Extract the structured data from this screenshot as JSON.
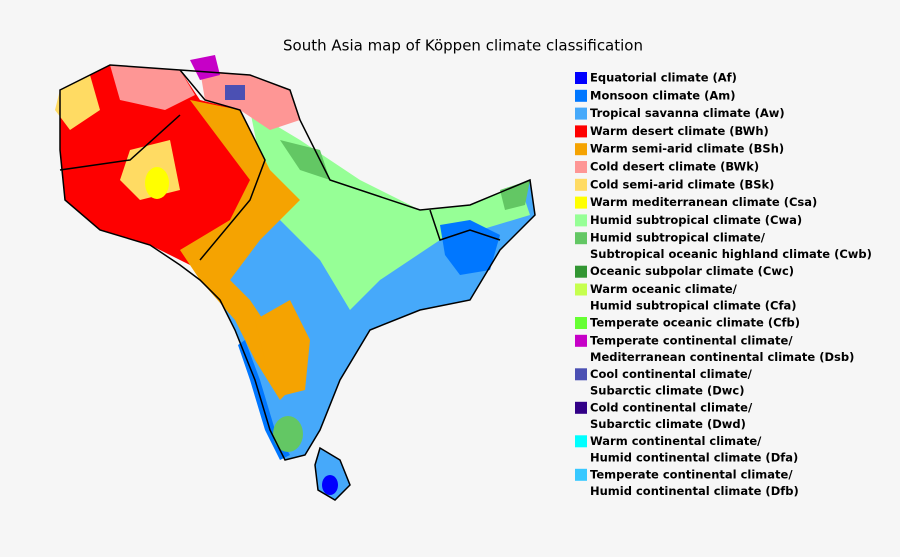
{
  "title": "South Asia map of Köppen climate classification",
  "legend": [
    {
      "lines": [
        "Equatorial climate (Af)"
      ],
      "color": "#0000fe"
    },
    {
      "lines": [
        "Monsoon climate (Am)"
      ],
      "color": "#0077ff"
    },
    {
      "lines": [
        "Tropical savanna climate (Aw)"
      ],
      "color": "#46a9fa"
    },
    {
      "lines": [
        "Warm desert climate (BWh)"
      ],
      "color": "#fe0000"
    },
    {
      "lines": [
        "Warm semi-arid climate (BSh)"
      ],
      "color": "#f5a301"
    },
    {
      "lines": [
        "Cold desert climate (BWk)"
      ],
      "color": "#fe9695"
    },
    {
      "lines": [
        "Cold semi-arid climate (BSk)"
      ],
      "color": "#ffdb63"
    },
    {
      "lines": [
        "Warm mediterranean climate (Csa)"
      ],
      "color": "#ffff00"
    },
    {
      "lines": [
        "Humid subtropical climate (Cwa)"
      ],
      "color": "#96ff96"
    },
    {
      "lines": [
        "Humid subtropical climate/",
        "Subtropical oceanic highland climate (Cwb)"
      ],
      "color": "#63c764"
    },
    {
      "lines": [
        "Oceanic subpolar climate (Cwc)"
      ],
      "color": "#329633"
    },
    {
      "lines": [
        "Warm oceanic climate/",
        "Humid subtropical climate (Cfa)"
      ],
      "color": "#c6ff4e"
    },
    {
      "lines": [
        "Temperate oceanic climate (Cfb)"
      ],
      "color": "#66ff33"
    },
    {
      "lines": [
        "Temperate continental climate/",
        "Mediterranean continental climate (Dsb)"
      ],
      "color": "#c600c7"
    },
    {
      "lines": [
        "Cool continental climate/",
        "Subarctic climate (Dwc)"
      ],
      "color": "#4b50b3"
    },
    {
      "lines": [
        "Cold continental climate/",
        "Subarctic climate (Dwd)"
      ],
      "color": "#320087"
    },
    {
      "lines": [
        "Warm continental climate/",
        "Humid continental climate (Dfa)"
      ],
      "color": "#00ffff"
    },
    {
      "lines": [
        "Temperate continental climate/",
        "Humid continental climate (Dfb)"
      ],
      "color": "#37c8ff"
    }
  ]
}
